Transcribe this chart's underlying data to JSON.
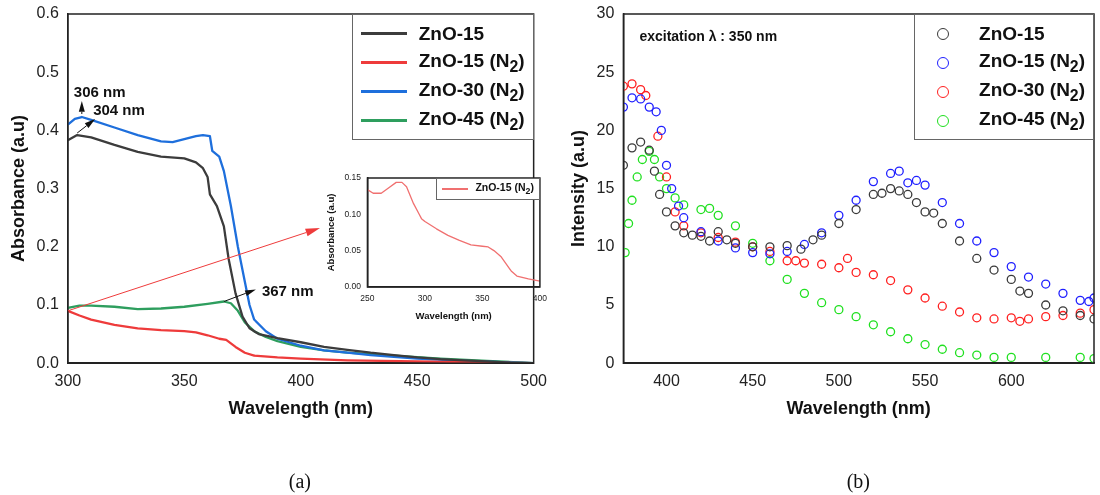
{
  "chart_data": [
    {
      "type": "line",
      "xlabel": "Wavelength (nm)",
      "ylabel": "Absorbance (a.u)",
      "xlim": [
        300,
        500
      ],
      "ylim": [
        0,
        0.6
      ],
      "xticks": [
        300,
        350,
        400,
        450,
        500
      ],
      "yticks": [
        {
          "value": 0,
          "label": "0.0"
        },
        0.1,
        0.2,
        0.3,
        0.4,
        0.5,
        0.6
      ],
      "legend": "top right",
      "series": [
        {
          "name": "ZnO-15",
          "color": "#3c3c3c",
          "x": [
            300,
            304,
            310,
            320,
            330,
            340,
            350,
            355,
            358,
            360,
            361,
            364,
            367,
            369,
            372,
            375,
            378,
            382,
            390,
            400,
            410,
            420,
            430,
            440,
            450,
            460,
            470,
            480,
            490,
            500
          ],
          "values": [
            0.383,
            0.392,
            0.388,
            0.375,
            0.363,
            0.355,
            0.352,
            0.345,
            0.335,
            0.32,
            0.29,
            0.27,
            0.235,
            0.18,
            0.12,
            0.08,
            0.06,
            0.05,
            0.043,
            0.036,
            0.028,
            0.023,
            0.018,
            0.014,
            0.01,
            0.007,
            0.005,
            0.003,
            0.001,
            0
          ]
        },
        {
          "name": "ZnO-15 (N$_{2}$)",
          "color": "#ee3b3b",
          "x": [
            300,
            305,
            310,
            320,
            330,
            340,
            350,
            355,
            360,
            365,
            368,
            372,
            376,
            380,
            390,
            400,
            420,
            450,
            500
          ],
          "values": [
            0.09,
            0.082,
            0.075,
            0.066,
            0.06,
            0.057,
            0.055,
            0.053,
            0.048,
            0.042,
            0.04,
            0.028,
            0.018,
            0.013,
            0.01,
            0.008,
            0.005,
            0.003,
            0
          ]
        },
        {
          "name": "ZnO-30 (N$_{2}$)",
          "color": "#1e6fdc",
          "x": [
            300,
            303,
            306,
            310,
            320,
            330,
            340,
            345,
            350,
            355,
            358,
            361,
            362,
            365,
            367,
            370,
            373,
            376,
            378,
            380,
            385,
            390,
            400,
            410,
            420,
            430,
            440,
            450,
            470,
            500
          ],
          "values": [
            0.41,
            0.42,
            0.423,
            0.418,
            0.405,
            0.392,
            0.381,
            0.38,
            0.385,
            0.39,
            0.392,
            0.39,
            0.365,
            0.355,
            0.33,
            0.27,
            0.2,
            0.14,
            0.1,
            0.075,
            0.055,
            0.042,
            0.03,
            0.022,
            0.018,
            0.014,
            0.011,
            0.008,
            0.004,
            0
          ]
        },
        {
          "name": "ZnO-45 (N$_{2}$)",
          "color": "#2e9e5e",
          "x": [
            300,
            305,
            310,
            320,
            330,
            340,
            350,
            360,
            367,
            370,
            373,
            376,
            380,
            385,
            390,
            400,
            410,
            420,
            440,
            460,
            480,
            500
          ],
          "values": [
            0.095,
            0.099,
            0.099,
            0.097,
            0.093,
            0.094,
            0.097,
            0.102,
            0.106,
            0.103,
            0.09,
            0.07,
            0.055,
            0.045,
            0.038,
            0.028,
            0.022,
            0.018,
            0.013,
            0.008,
            0.004,
            0
          ]
        }
      ],
      "annotations": [
        {
          "text": "306 nm",
          "x": 306,
          "y": 0.423
        },
        {
          "text": "304 nm",
          "x": 304,
          "y": 0.392
        },
        {
          "text": "367 nm",
          "x": 367,
          "y": 0.106
        },
        "(a)"
      ]
    },
    {
      "type": "line",
      "xlabel": "Wavelength (nm)",
      "ylabel": "Absorbance (a.u)",
      "xlim": [
        250,
        400
      ],
      "ylim": [
        0,
        0.15
      ],
      "xticks": [
        250,
        300,
        350,
        400
      ],
      "yticks": [
        {
          "value": 0,
          "label": "0.00"
        },
        {
          "value": 0.05,
          "label": "0.05"
        },
        {
          "value": 0.1,
          "label": "0.10"
        },
        {
          "value": 0.15,
          "label": "0.15"
        }
      ],
      "legend": "top right",
      "series": [
        {
          "name": "ZnO-15 (N$_{2}$)",
          "color": "#f07070",
          "x": [
            250,
            255,
            262,
            268,
            275,
            280,
            284,
            290,
            295,
            297,
            300,
            310,
            320,
            330,
            340,
            350,
            355,
            360,
            366,
            370,
            375,
            380,
            390,
            400
          ],
          "values": [
            0.134,
            0.129,
            0.129,
            0.136,
            0.144,
            0.144,
            0.138,
            0.115,
            0.1,
            0.094,
            0.09,
            0.08,
            0.071,
            0.064,
            0.058,
            0.056,
            0.055,
            0.05,
            0.042,
            0.033,
            0.022,
            0.015,
            0.011,
            0.008
          ]
        }
      ]
    },
    {
      "type": "scatter",
      "xlabel": "Wavelength (nm)",
      "ylabel": "Intensity (a.u)",
      "xlim": [
        375,
        648
      ],
      "ylim": [
        0,
        30
      ],
      "xticks": [
        400,
        450,
        500,
        550,
        600
      ],
      "yticks": [
        0,
        5,
        10,
        15,
        20,
        25,
        30
      ],
      "legend": "top right",
      "marker": "circle",
      "series": [
        {
          "name": "ZnO-15",
          "color": "#3a3a3a",
          "x": [
            375,
            380,
            385,
            390,
            393,
            396,
            400,
            405,
            410,
            415,
            420,
            425,
            430,
            435,
            440,
            450,
            460,
            470,
            478,
            485,
            490,
            500,
            510,
            520,
            525,
            530,
            535,
            540,
            545,
            550,
            555,
            560,
            570,
            580,
            590,
            600,
            605,
            610,
            620,
            630,
            640,
            648
          ],
          "values": [
            17,
            18.5,
            19,
            18.3,
            16.5,
            14.5,
            13,
            11.8,
            11.2,
            11,
            10.9,
            10.5,
            11.3,
            10.6,
            10.3,
            10,
            10,
            10.1,
            9.8,
            10.6,
            11,
            12,
            13.2,
            14.5,
            14.6,
            15,
            14.8,
            14.5,
            13.8,
            13,
            12.9,
            12,
            10.5,
            9,
            8,
            7.2,
            6.2,
            6,
            5,
            4.5,
            4.1,
            3.8
          ]
        },
        {
          "name": "ZnO-15 (N$_{2}$)",
          "color": "#2020ff",
          "x": [
            375,
            380,
            385,
            390,
            394,
            397,
            400,
            403,
            407,
            410,
            420,
            430,
            440,
            450,
            460,
            470,
            480,
            490,
            500,
            510,
            520,
            530,
            535,
            540,
            545,
            550,
            560,
            570,
            580,
            590,
            600,
            610,
            620,
            630,
            640,
            645,
            648
          ],
          "values": [
            22,
            22.8,
            22.7,
            22,
            21.6,
            20,
            17,
            15,
            13.5,
            12.5,
            11.3,
            10.5,
            9.9,
            9.5,
            9.4,
            9.6,
            10.2,
            11.2,
            12.7,
            14,
            15.6,
            16.3,
            16.5,
            15.5,
            15.7,
            15.3,
            13.8,
            12,
            10.5,
            9.5,
            8.3,
            7.4,
            6.8,
            6,
            5.4,
            5.3,
            5.6
          ]
        },
        {
          "name": "ZnO-30 (N$_{2}$)",
          "color": "#ff2020",
          "x": [
            375,
            380,
            385,
            388,
            395,
            400,
            405,
            410,
            420,
            430,
            440,
            450,
            460,
            470,
            475,
            480,
            490,
            500,
            505,
            510,
            520,
            530,
            540,
            550,
            560,
            570,
            580,
            590,
            600,
            605,
            610,
            620,
            630,
            640,
            648
          ],
          "values": [
            23.8,
            24,
            23.5,
            23,
            19.5,
            16,
            13,
            11.8,
            11.2,
            10.8,
            10.4,
            10,
            9.6,
            8.8,
            8.8,
            8.6,
            8.5,
            8.2,
            9,
            7.8,
            7.6,
            7.1,
            6.3,
            5.6,
            4.9,
            4.4,
            3.9,
            3.8,
            3.9,
            3.6,
            3.8,
            4,
            4.1,
            4.3,
            4.6
          ]
        },
        {
          "name": "ZnO-45 (N$_{2}$)",
          "color": "#20e020",
          "x": [
            376,
            378,
            380,
            383,
            386,
            390,
            393,
            396,
            400,
            405,
            410,
            420,
            425,
            430,
            440,
            450,
            460,
            470,
            480,
            490,
            500,
            510,
            520,
            530,
            540,
            550,
            560,
            570,
            580,
            590,
            600,
            620,
            640,
            648
          ],
          "values": [
            9.5,
            12,
            14,
            16,
            17.5,
            18.2,
            17.5,
            16,
            15,
            14.2,
            13.6,
            13.2,
            13.3,
            12.7,
            11.8,
            10.3,
            8.8,
            7.2,
            6,
            5.2,
            4.6,
            4,
            3.3,
            2.7,
            2.1,
            1.6,
            1.2,
            0.9,
            0.7,
            0.5,
            0.5,
            0.5,
            0.5,
            0.4
          ]
        }
      ],
      "annotations": [
        "excitation λ : 350 nm",
        "(b)"
      ]
    }
  ]
}
